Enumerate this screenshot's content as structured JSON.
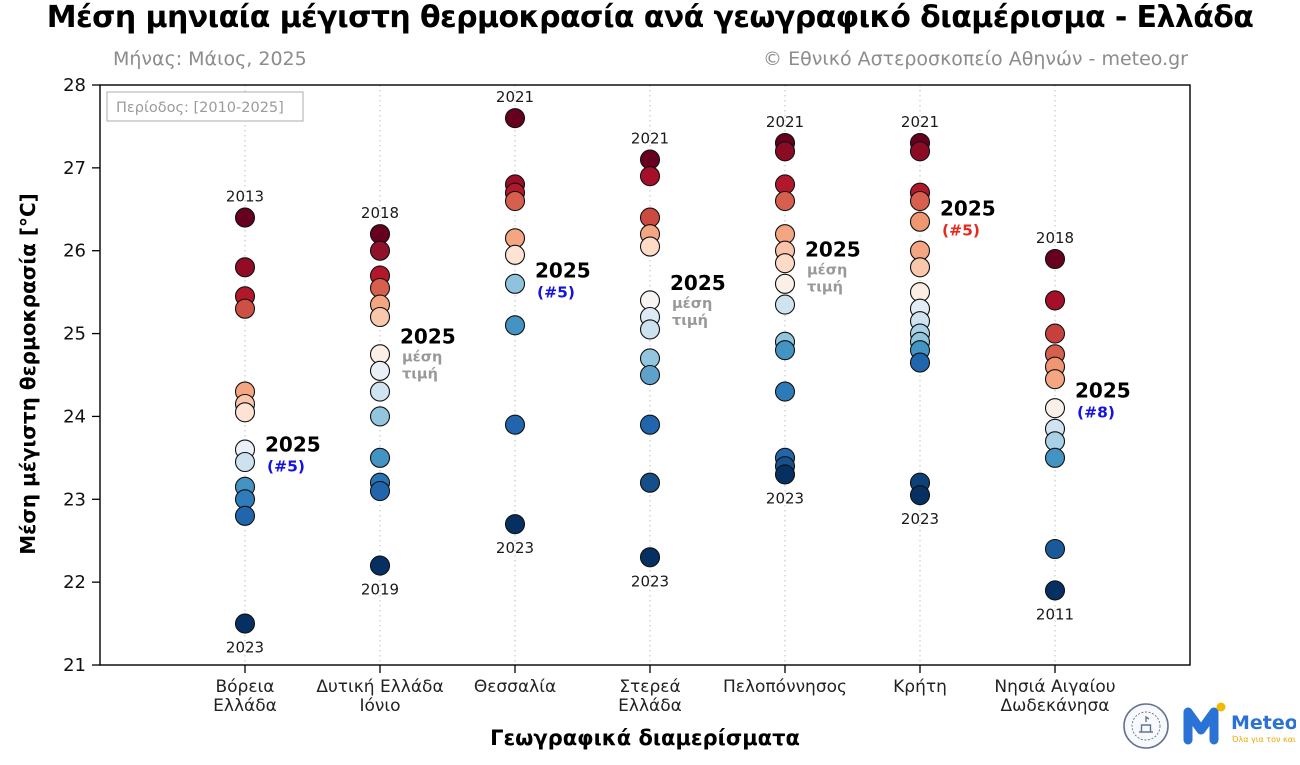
{
  "title": "Μέση μηνιαία μέγιστη θερμοκρασία ανά γεωγραφικό διαμέρισμα - Ελλάδα",
  "subtitle": "Μήνας: Μάιος, 2025",
  "attribution": "© Εθνικό Αστεροσκοπείο Αθηνών - meteo.gr",
  "period_note": "Περίοδος: [2010-2025]",
  "xlabel": "Γεωγραφικά διαμερίσματα",
  "ylabel": "Μέση μέγιστη θερμοκρασία [°C]",
  "logos": {
    "meteo_name": "Meteo",
    "meteo_tagline": "Όλα για τον καιρό"
  },
  "accent_colors": {
    "annotation_blue": "#1414e0",
    "annotation_red": "#e8281e",
    "annotation_grey": "#999999",
    "warmest": "#67001f",
    "coldest": "#053061"
  },
  "chart_data": {
    "type": "scatter",
    "title": "Μέση μηνιαία μέγιστη θερμοκρασία ανά γεωγραφικό διαμέρισμα - Ελλάδα",
    "xlabel": "Γεωγραφικά διαμερίσματα",
    "ylabel": "Μέση μέγιστη θερμοκρασία [°C]",
    "ylim": [
      21,
      28
    ],
    "yticks": [
      21,
      22,
      23,
      24,
      25,
      26,
      27,
      28
    ],
    "grid": "vertical-dotted",
    "legend": "none",
    "categories": [
      "Βόρεια Ελλάδα",
      "Δυτική Ελλάδα Ιόνιο",
      "Θεσσαλία",
      "Στερεά Ελλάδα",
      "Πελοπόννησος",
      "Κρήτη",
      "Νησιά Αιγαίου Δωδεκάνησα"
    ],
    "regions": [
      {
        "name": "Βόρεια Ελλάδα",
        "tick_lines": [
          "Βόρεια",
          "Ελλάδα"
        ],
        "max_year_label": {
          "text": "2013",
          "value": 26.4
        },
        "min_year_label": {
          "text": "2023",
          "value": 21.5
        },
        "label_2025": {
          "text": "2025",
          "value": 23.65,
          "sub": "(#5)",
          "sub_color": "#1414e0"
        },
        "points": [
          {
            "v": 26.4,
            "c": "#67001f"
          },
          {
            "v": 25.8,
            "c": "#920c26"
          },
          {
            "v": 25.45,
            "c": "#b2182b"
          },
          {
            "v": 25.3,
            "c": "#ce5045"
          },
          {
            "v": 24.3,
            "c": "#f4a582"
          },
          {
            "v": 24.15,
            "c": "#f9c7ab"
          },
          {
            "v": 24.05,
            "c": "#fde3d3"
          },
          {
            "v": 23.6,
            "c": "#eaf1f8"
          },
          {
            "v": 23.45,
            "c": "#cde2ef"
          },
          {
            "v": 23.15,
            "c": "#4393c3"
          },
          {
            "v": 23.0,
            "c": "#2f7cba"
          },
          {
            "v": 22.8,
            "c": "#2166ac"
          },
          {
            "v": 21.5,
            "c": "#053061"
          }
        ]
      },
      {
        "name": "Δυτική Ελλάδα Ιόνιο",
        "tick_lines": [
          "Δυτική Ελλάδα",
          "Ιόνιο"
        ],
        "max_year_label": {
          "text": "2018",
          "value": 26.2
        },
        "min_year_label": {
          "text": "2019",
          "value": 22.2
        },
        "label_2025": {
          "text": "2025",
          "value": 24.95,
          "sub_lines": [
            "μέση",
            "τιμή"
          ],
          "sub_color": "#999999"
        },
        "points": [
          {
            "v": 26.2,
            "c": "#67001f"
          },
          {
            "v": 26.0,
            "c": "#90122a"
          },
          {
            "v": 25.7,
            "c": "#b2182b"
          },
          {
            "v": 25.55,
            "c": "#d6604d"
          },
          {
            "v": 25.35,
            "c": "#f4a582"
          },
          {
            "v": 25.2,
            "c": "#f9c7ab"
          },
          {
            "v": 24.75,
            "c": "#fbf0e8"
          },
          {
            "v": 24.55,
            "c": "#e9f0f6"
          },
          {
            "v": 24.3,
            "c": "#cfe3f0"
          },
          {
            "v": 24.0,
            "c": "#92c5de"
          },
          {
            "v": 23.5,
            "c": "#4393c3"
          },
          {
            "v": 23.2,
            "c": "#2a74b4"
          },
          {
            "v": 23.1,
            "c": "#2166ac"
          },
          {
            "v": 22.2,
            "c": "#053061"
          }
        ]
      },
      {
        "name": "Θεσσαλία",
        "tick_lines": [
          "Θεσσαλία"
        ],
        "max_year_label": {
          "text": "2021",
          "value": 27.6
        },
        "min_year_label": {
          "text": "2023",
          "value": 22.7
        },
        "label_2025": {
          "text": "2025",
          "value": 25.75,
          "sub": "(#5)",
          "sub_color": "#1414e0"
        },
        "points": [
          {
            "v": 27.6,
            "c": "#67001f"
          },
          {
            "v": 26.8,
            "c": "#9a0e27"
          },
          {
            "v": 26.7,
            "c": "#b2182b"
          },
          {
            "v": 26.6,
            "c": "#d6604d"
          },
          {
            "v": 26.15,
            "c": "#f4a582"
          },
          {
            "v": 25.95,
            "c": "#fde3d3"
          },
          {
            "v": 25.6,
            "c": "#8fc3dd"
          },
          {
            "v": 25.1,
            "c": "#4393c3"
          },
          {
            "v": 23.9,
            "c": "#2166ac"
          },
          {
            "v": 22.7,
            "c": "#053061"
          }
        ]
      },
      {
        "name": "Στερεά Ελλάδα",
        "tick_lines": [
          "Στερεά",
          "Ελλάδα"
        ],
        "max_year_label": {
          "text": "2021",
          "value": 27.1
        },
        "min_year_label": {
          "text": "2023",
          "value": 22.3
        },
        "label_2025": {
          "text": "2025",
          "value": 25.6,
          "sub_lines": [
            "μέση",
            "τιμή"
          ],
          "sub_color": "#999999"
        },
        "points": [
          {
            "v": 27.1,
            "c": "#67001f"
          },
          {
            "v": 26.9,
            "c": "#a50f2a"
          },
          {
            "v": 26.4,
            "c": "#cc4a3f"
          },
          {
            "v": 26.2,
            "c": "#f4a582"
          },
          {
            "v": 26.05,
            "c": "#fddbc7"
          },
          {
            "v": 25.4,
            "c": "#f8f4f1"
          },
          {
            "v": 25.2,
            "c": "#ddeaf4"
          },
          {
            "v": 25.05,
            "c": "#cde2ef"
          },
          {
            "v": 24.7,
            "c": "#92c5de"
          },
          {
            "v": 24.5,
            "c": "#5ea1ca"
          },
          {
            "v": 23.9,
            "c": "#2166ac"
          },
          {
            "v": 23.2,
            "c": "#164e8a"
          },
          {
            "v": 22.3,
            "c": "#053061"
          }
        ]
      },
      {
        "name": "Πελοπόννησος",
        "tick_lines": [
          "Πελοπόννησος"
        ],
        "max_year_label": {
          "text": "2021",
          "value": 27.3
        },
        "min_year_label": {
          "text": "2023",
          "value": 23.3
        },
        "label_2025": {
          "text": "2025",
          "value": 26.0,
          "sub_lines": [
            "μέση",
            "τιμή"
          ],
          "sub_color": "#999999"
        },
        "points": [
          {
            "v": 27.3,
            "c": "#67001f"
          },
          {
            "v": 27.2,
            "c": "#8c0b24"
          },
          {
            "v": 26.8,
            "c": "#b2182b"
          },
          {
            "v": 26.6,
            "c": "#d6604d"
          },
          {
            "v": 26.2,
            "c": "#f4a582"
          },
          {
            "v": 26.0,
            "c": "#f9c4a9"
          },
          {
            "v": 25.85,
            "c": "#fddbc7"
          },
          {
            "v": 25.6,
            "c": "#fbf0e8"
          },
          {
            "v": 25.35,
            "c": "#cfe3f0"
          },
          {
            "v": 24.9,
            "c": "#92c5de"
          },
          {
            "v": 24.8,
            "c": "#4393c3"
          },
          {
            "v": 24.3,
            "c": "#2d7ab8"
          },
          {
            "v": 23.5,
            "c": "#2166ac"
          },
          {
            "v": 23.4,
            "c": "#16518d"
          },
          {
            "v": 23.3,
            "c": "#053061"
          }
        ]
      },
      {
        "name": "Κρήτη",
        "tick_lines": [
          "Κρήτη"
        ],
        "max_year_label": {
          "text": "2021",
          "value": 27.3
        },
        "min_year_label": {
          "text": "2023",
          "value": 23.05
        },
        "label_2025": {
          "text": "2025",
          "value": 26.5,
          "sub": "(#5)",
          "sub_color": "#e8281e"
        },
        "points": [
          {
            "v": 27.3,
            "c": "#67001f"
          },
          {
            "v": 27.2,
            "c": "#8c0b24"
          },
          {
            "v": 26.7,
            "c": "#b2182b"
          },
          {
            "v": 26.6,
            "c": "#d6604d"
          },
          {
            "v": 26.35,
            "c": "#ef9771"
          },
          {
            "v": 26.0,
            "c": "#f4a582"
          },
          {
            "v": 25.8,
            "c": "#f9c7ab"
          },
          {
            "v": 25.5,
            "c": "#fdeee4"
          },
          {
            "v": 25.3,
            "c": "#e2edf6"
          },
          {
            "v": 25.15,
            "c": "#cfe3f0"
          },
          {
            "v": 25.0,
            "c": "#aad2e7"
          },
          {
            "v": 24.9,
            "c": "#92c5de"
          },
          {
            "v": 24.8,
            "c": "#4393c3"
          },
          {
            "v": 24.65,
            "c": "#2166ac"
          },
          {
            "v": 23.2,
            "c": "#0d4178"
          },
          {
            "v": 23.05,
            "c": "#053061"
          }
        ]
      },
      {
        "name": "Νησιά Αιγαίου Δωδεκάνησα",
        "tick_lines": [
          "Νησιά Αιγαίου",
          "Δωδεκάνησα"
        ],
        "max_year_label": {
          "text": "2018",
          "value": 25.9
        },
        "min_year_label": {
          "text": "2011",
          "value": 21.9
        },
        "label_2025": {
          "text": "2025",
          "value": 24.3,
          "sub": "(#8)",
          "sub_color": "#1414e0"
        },
        "points": [
          {
            "v": 25.9,
            "c": "#67001f"
          },
          {
            "v": 25.4,
            "c": "#a50f2a"
          },
          {
            "v": 25.0,
            "c": "#c7403c"
          },
          {
            "v": 24.75,
            "c": "#d6604d"
          },
          {
            "v": 24.6,
            "c": "#ef9771"
          },
          {
            "v": 24.45,
            "c": "#f4a582"
          },
          {
            "v": 24.1,
            "c": "#fbf0e9"
          },
          {
            "v": 23.85,
            "c": "#cfe3f0"
          },
          {
            "v": 23.7,
            "c": "#a8d0e6"
          },
          {
            "v": 23.5,
            "c": "#4393c3"
          },
          {
            "v": 22.4,
            "c": "#1a5a9a"
          },
          {
            "v": 21.9,
            "c": "#053061"
          }
        ]
      }
    ]
  }
}
